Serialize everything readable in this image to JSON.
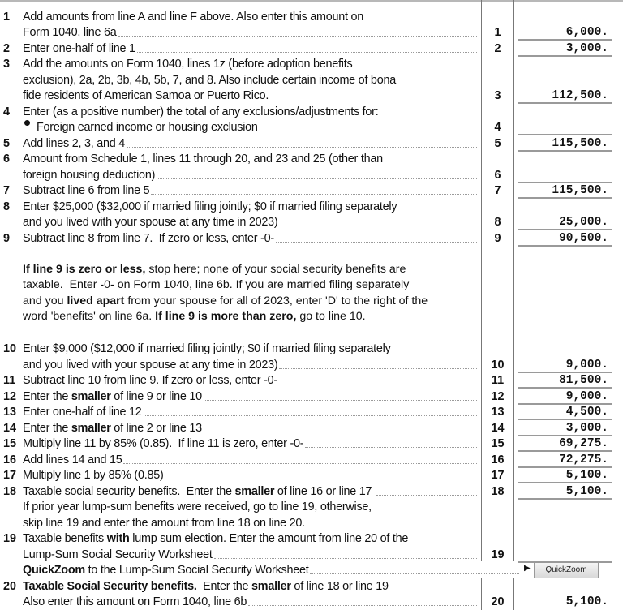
{
  "worksheet": {
    "rows": [
      {
        "num": "1",
        "lines": [
          [
            {
              "t": "Add amounts from line A and line F above. Also enter this amount on"
            }
          ],
          [
            {
              "t": "Form 1040, line 6a"
            }
          ]
        ],
        "box": "1",
        "amount": "6,000.",
        "dots": true
      },
      {
        "num": "2",
        "lines": [
          [
            {
              "t": "Enter one-half of line 1"
            }
          ]
        ],
        "box": "2",
        "amount": "3,000.",
        "dots": true
      },
      {
        "num": "3",
        "lines": [
          [
            {
              "t": "Add the amounts on Form 1040, lines 1z (before adoption benefits"
            }
          ],
          [
            {
              "t": "exclusion), 2a, 2b, 3b, 4b, 5b, 7, and 8. Also include certain income of bona"
            }
          ],
          [
            {
              "t": "fide residents of American Samoa or Puerto Rico."
            }
          ]
        ],
        "box": "3",
        "amount": "112,500.",
        "dots": false
      },
      {
        "num": "4",
        "lines": [
          [
            {
              "t": "Enter (as a positive number) the total of any exclusions/adjustments for:"
            }
          ],
          [
            {
              "t": "Foreign earned income or housing exclusion",
              "bullet": true
            }
          ]
        ],
        "box": "4",
        "amount": "",
        "dots": true
      },
      {
        "num": "5",
        "lines": [
          [
            {
              "t": "Add lines 2, 3, and 4"
            }
          ]
        ],
        "box": "5",
        "amount": "115,500.",
        "dots": true
      },
      {
        "num": "6",
        "lines": [
          [
            {
              "t": "Amount from Schedule 1, lines 11 through 20, and 23 and 25 (other than"
            }
          ],
          [
            {
              "t": "foreign housing deduction)"
            }
          ]
        ],
        "box": "6",
        "amount": "",
        "dots": true
      },
      {
        "num": "7",
        "lines": [
          [
            {
              "t": "Subtract line 6 from line 5"
            }
          ]
        ],
        "box": "7",
        "amount": "115,500.",
        "dots": true
      },
      {
        "num": "8",
        "lines": [
          [
            {
              "t": "Enter $25,000 ($32,000 if married filing jointly; $0 if married filing separately"
            }
          ],
          [
            {
              "t": "and you lived with your spouse at any time in 2023)"
            }
          ]
        ],
        "box": "8",
        "amount": "25,000.",
        "dots": true
      },
      {
        "num": "9",
        "lines": [
          [
            {
              "t": "Subtract line 8 from line 7.  If zero or less, enter -0-"
            }
          ]
        ],
        "box": "9",
        "amount": "90,500.",
        "dots": true
      }
    ],
    "note": [
      [
        {
          "t": "If line 9 is zero or less,",
          "b": true
        },
        {
          "t": " stop here; none of your social security benefits are"
        }
      ],
      [
        {
          "t": "taxable.  Enter -0- on Form 1040, line 6b. If you are married filing separately"
        }
      ],
      [
        {
          "t": "and you "
        },
        {
          "t": "lived apart",
          "b": true
        },
        {
          "t": " from your spouse for all of 2023, enter 'D' to the right of the"
        }
      ],
      [
        {
          "t": "word 'benefits' on line 6a. "
        },
        {
          "t": "If line 9 is more than zero,",
          "b": true
        },
        {
          "t": " go to line 10."
        }
      ]
    ],
    "rows2": [
      {
        "num": "10",
        "lines": [
          [
            {
              "t": "Enter $9,000 ($12,000 if married filing jointly; $0 if married filing separately"
            }
          ],
          [
            {
              "t": "and you lived with your spouse at any time in 2023)"
            }
          ]
        ],
        "box": "10",
        "amount": "9,000.",
        "dots": true
      },
      {
        "num": "11",
        "lines": [
          [
            {
              "t": "Subtract line 10 from line 9. If zero or less, enter -0-"
            }
          ]
        ],
        "box": "11",
        "amount": "81,500.",
        "dots": true
      },
      {
        "num": "12",
        "lines": [
          [
            {
              "t": "Enter the "
            },
            {
              "t": "smaller",
              "b": true
            },
            {
              "t": " of line 9 or line 10"
            }
          ]
        ],
        "box": "12",
        "amount": "9,000.",
        "dots": true
      },
      {
        "num": "13",
        "lines": [
          [
            {
              "t": "Enter one-half of line 12"
            }
          ]
        ],
        "box": "13",
        "amount": "4,500.",
        "dots": true
      },
      {
        "num": "14",
        "lines": [
          [
            {
              "t": "Enter the "
            },
            {
              "t": "smaller",
              "b": true
            },
            {
              "t": " of line 2 or line 13"
            }
          ]
        ],
        "box": "14",
        "amount": "3,000.",
        "dots": true
      },
      {
        "num": "15",
        "lines": [
          [
            {
              "t": "Multiply line 11 by 85% (0.85).  If line 11 is zero, enter -0-"
            }
          ]
        ],
        "box": "15",
        "amount": "69,275.",
        "dots": true
      },
      {
        "num": "16",
        "lines": [
          [
            {
              "t": "Add lines 14 and 15"
            }
          ]
        ],
        "box": "16",
        "amount": "72,275.",
        "dots": true
      },
      {
        "num": "17",
        "lines": [
          [
            {
              "t": "Multiply line 1 by 85% (0.85)"
            }
          ]
        ],
        "box": "17",
        "amount": "5,100.",
        "dots": true
      },
      {
        "num": "18",
        "lines": [
          [
            {
              "t": "Taxable social security benefits.  Enter the "
            },
            {
              "t": "smaller",
              "b": true
            },
            {
              "t": " of line 16 or line 17 "
            }
          ],
          [
            {
              "t": "If prior year lump-sum benefits were received, go to line 19, otherwise,"
            }
          ],
          [
            {
              "t": "skip line 19 and enter the amount from line 18 on line 20."
            }
          ]
        ],
        "box": "18",
        "amount": "5,100.",
        "dots": true,
        "firstline": true
      },
      {
        "num": "19",
        "lines": [
          [
            {
              "t": "Taxable benefits "
            },
            {
              "t": "with",
              "b": true
            },
            {
              "t": " lump sum election. Enter the amount from line 20 of the"
            }
          ],
          [
            {
              "t": "Lump-Sum Social Security Worksheet"
            }
          ]
        ],
        "box": "19",
        "amount": "",
        "dots": true
      },
      {
        "num": "",
        "lines": [
          [
            {
              "t": "QuickZoom",
              "b": true
            },
            {
              "t": " to the Lump-Sum Social Security Worksheet"
            }
          ]
        ],
        "box": "",
        "amount": "",
        "dots": true,
        "quickzoom": true
      },
      {
        "num": "20",
        "lines": [
          [
            {
              "t": "Taxable Social Security benefits.",
              "b": true
            },
            {
              "t": "  Enter the "
            },
            {
              "t": "smaller",
              "b": true
            },
            {
              "t": " of line 18 or line 19"
            }
          ],
          [
            {
              "t": "Also enter this amount on Form 1040, line 6b"
            }
          ]
        ],
        "box": "20",
        "amount": "5,100.",
        "dots": true,
        "nounderline": true
      }
    ],
    "quickzoom_button": "QuickZoom"
  }
}
